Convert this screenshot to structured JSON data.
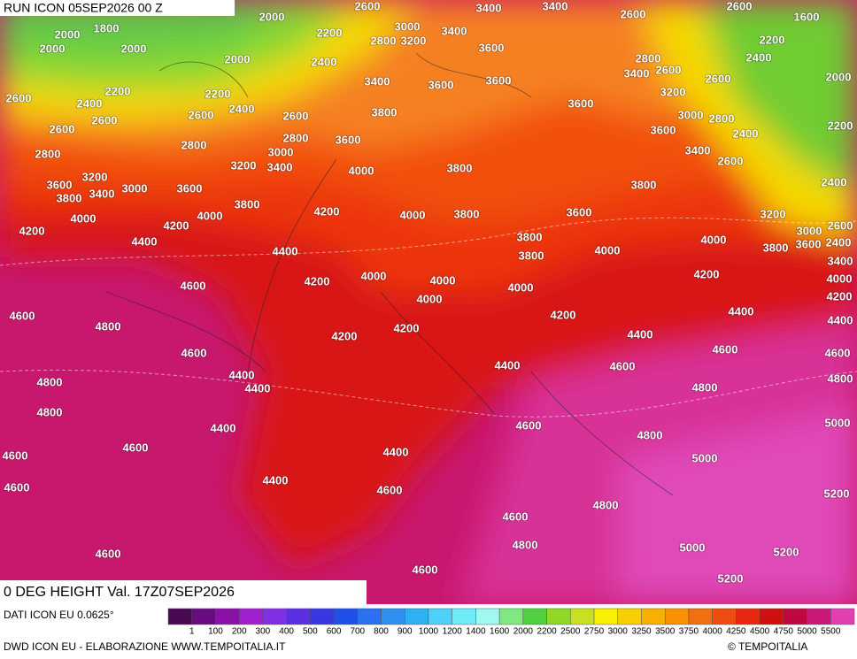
{
  "header": {
    "title": "RUN ICON 05SEP2026 00 Z"
  },
  "map": {
    "contour_labels": [
      2000,
      2600,
      3400,
      3400,
      2600,
      2600,
      1600,
      1800,
      2000,
      2000,
      2000,
      2200,
      3000,
      3400,
      2800,
      3200,
      3600,
      2800,
      2200,
      2000,
      2400,
      2600,
      3400,
      2600,
      2400,
      2000,
      2200,
      2600,
      2400,
      2200,
      2400,
      3400,
      3600,
      3600,
      3200,
      2600,
      2600,
      2600,
      3800,
      3600,
      3000,
      2800,
      2200,
      2600,
      2800,
      3600,
      3600,
      2400,
      2800,
      2800,
      3000,
      3400,
      2600,
      3200,
      3200,
      3400,
      4000,
      3800,
      3600,
      3400,
      3000,
      3600,
      3800,
      2400,
      3800,
      3800,
      4200,
      4000,
      3800,
      3600,
      3200,
      4000,
      4000,
      4200,
      3000,
      2600,
      4200,
      4400,
      3800,
      4000,
      4000,
      3800,
      3600,
      2400,
      4400,
      3800,
      3400,
      4200,
      4000,
      4000,
      4000,
      4200,
      4000,
      4600,
      4000,
      4200,
      4600,
      4800,
      4200,
      4400,
      4400,
      4200,
      4200,
      4400,
      4600,
      4600,
      4600,
      4400,
      4600,
      4400,
      4400,
      4800,
      4800,
      4800,
      4800,
      4400,
      4600,
      5000,
      4600,
      4400,
      4800,
      4600,
      5000,
      4400,
      4600,
      4600,
      4800,
      5200,
      4600,
      4800,
      5000,
      5200,
      4600,
      4600,
      5200
    ]
  },
  "footer": {
    "product": "0 DEG HEIGHT Val. 17Z07SEP2026",
    "source": "DATI ICON EU 0.0625°",
    "credit": "DWD ICON EU - ELABORAZIONE WWW.TEMPOITALIA.IT",
    "copyright": "© TEMPOITALIA"
  },
  "legend": {
    "labels": [
      "1",
      "100",
      "200",
      "300",
      "400",
      "500",
      "600",
      "700",
      "800",
      "900",
      "1000",
      "1200",
      "1400",
      "1600",
      "2000",
      "2200",
      "2500",
      "2750",
      "3000",
      "3250",
      "3500",
      "3750",
      "4000",
      "4250",
      "4500",
      "4750",
      "5000",
      "5500"
    ],
    "colors": [
      "#4a0850",
      "#6a0a80",
      "#8a10a8",
      "#a020d0",
      "#8030e0",
      "#5a30e0",
      "#3838e0",
      "#2050e8",
      "#2a70f0",
      "#3090f0",
      "#30b0f0",
      "#50d0f8",
      "#70ecf8",
      "#a0f8f0",
      "#80e880",
      "#50d040",
      "#90d828",
      "#c8e020",
      "#f8f000",
      "#f8d000",
      "#f8b000",
      "#f89000",
      "#f07010",
      "#f04c10",
      "#e82810",
      "#d01010",
      "#c00840",
      "#c81878",
      "#e040b0"
    ]
  }
}
